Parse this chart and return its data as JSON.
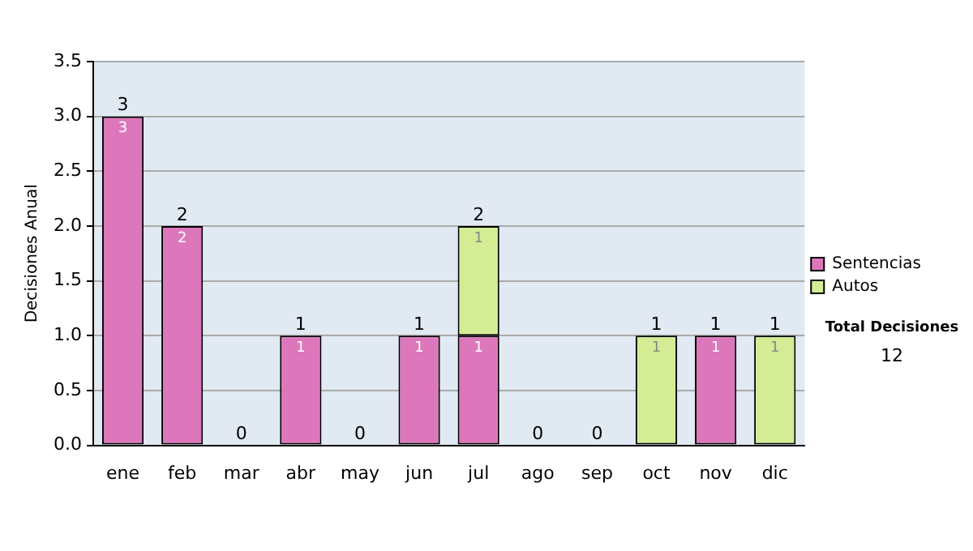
{
  "chart_data": {
    "type": "bar",
    "stacked": true,
    "ylabel": "Decisiones Anual",
    "categories": [
      "ene",
      "feb",
      "mar",
      "abr",
      "may",
      "jun",
      "jul",
      "ago",
      "sep",
      "oct",
      "nov",
      "dic"
    ],
    "series": [
      {
        "name": "Sentencias",
        "color": "#dd77bb",
        "values": [
          3,
          2,
          0,
          1,
          0,
          1,
          1,
          0,
          0,
          0,
          1,
          0
        ],
        "value_labels": [
          "3",
          "2",
          null,
          "1",
          null,
          "1",
          "1",
          null,
          null,
          null,
          "1",
          null
        ]
      },
      {
        "name": "Autos",
        "color": "#d4ec94",
        "values": [
          0,
          0,
          0,
          0,
          0,
          0,
          1,
          0,
          0,
          1,
          0,
          1
        ],
        "value_labels": [
          null,
          null,
          null,
          null,
          null,
          null,
          "1",
          null,
          null,
          "1",
          null,
          "1"
        ]
      }
    ],
    "totals": [
      "3",
      "2",
      "0",
      "1",
      "0",
      "1",
      "2",
      "0",
      "0",
      "1",
      "1",
      "1"
    ],
    "ylim": [
      0,
      3.5
    ],
    "yticks": [
      {
        "value": 0,
        "label": "0.0"
      },
      {
        "value": 0.5,
        "label": "0.5"
      },
      {
        "value": 1,
        "label": "1.0"
      },
      {
        "value": 1.5,
        "label": "1.5"
      },
      {
        "value": 2,
        "label": "2.0"
      },
      {
        "value": 2.5,
        "label": "2.5"
      },
      {
        "value": 3,
        "label": "3.0"
      },
      {
        "value": 3.5,
        "label": "3.5"
      }
    ],
    "grid": "y",
    "legend": "right",
    "annotations": [
      "Total Decisiones",
      "12"
    ]
  }
}
